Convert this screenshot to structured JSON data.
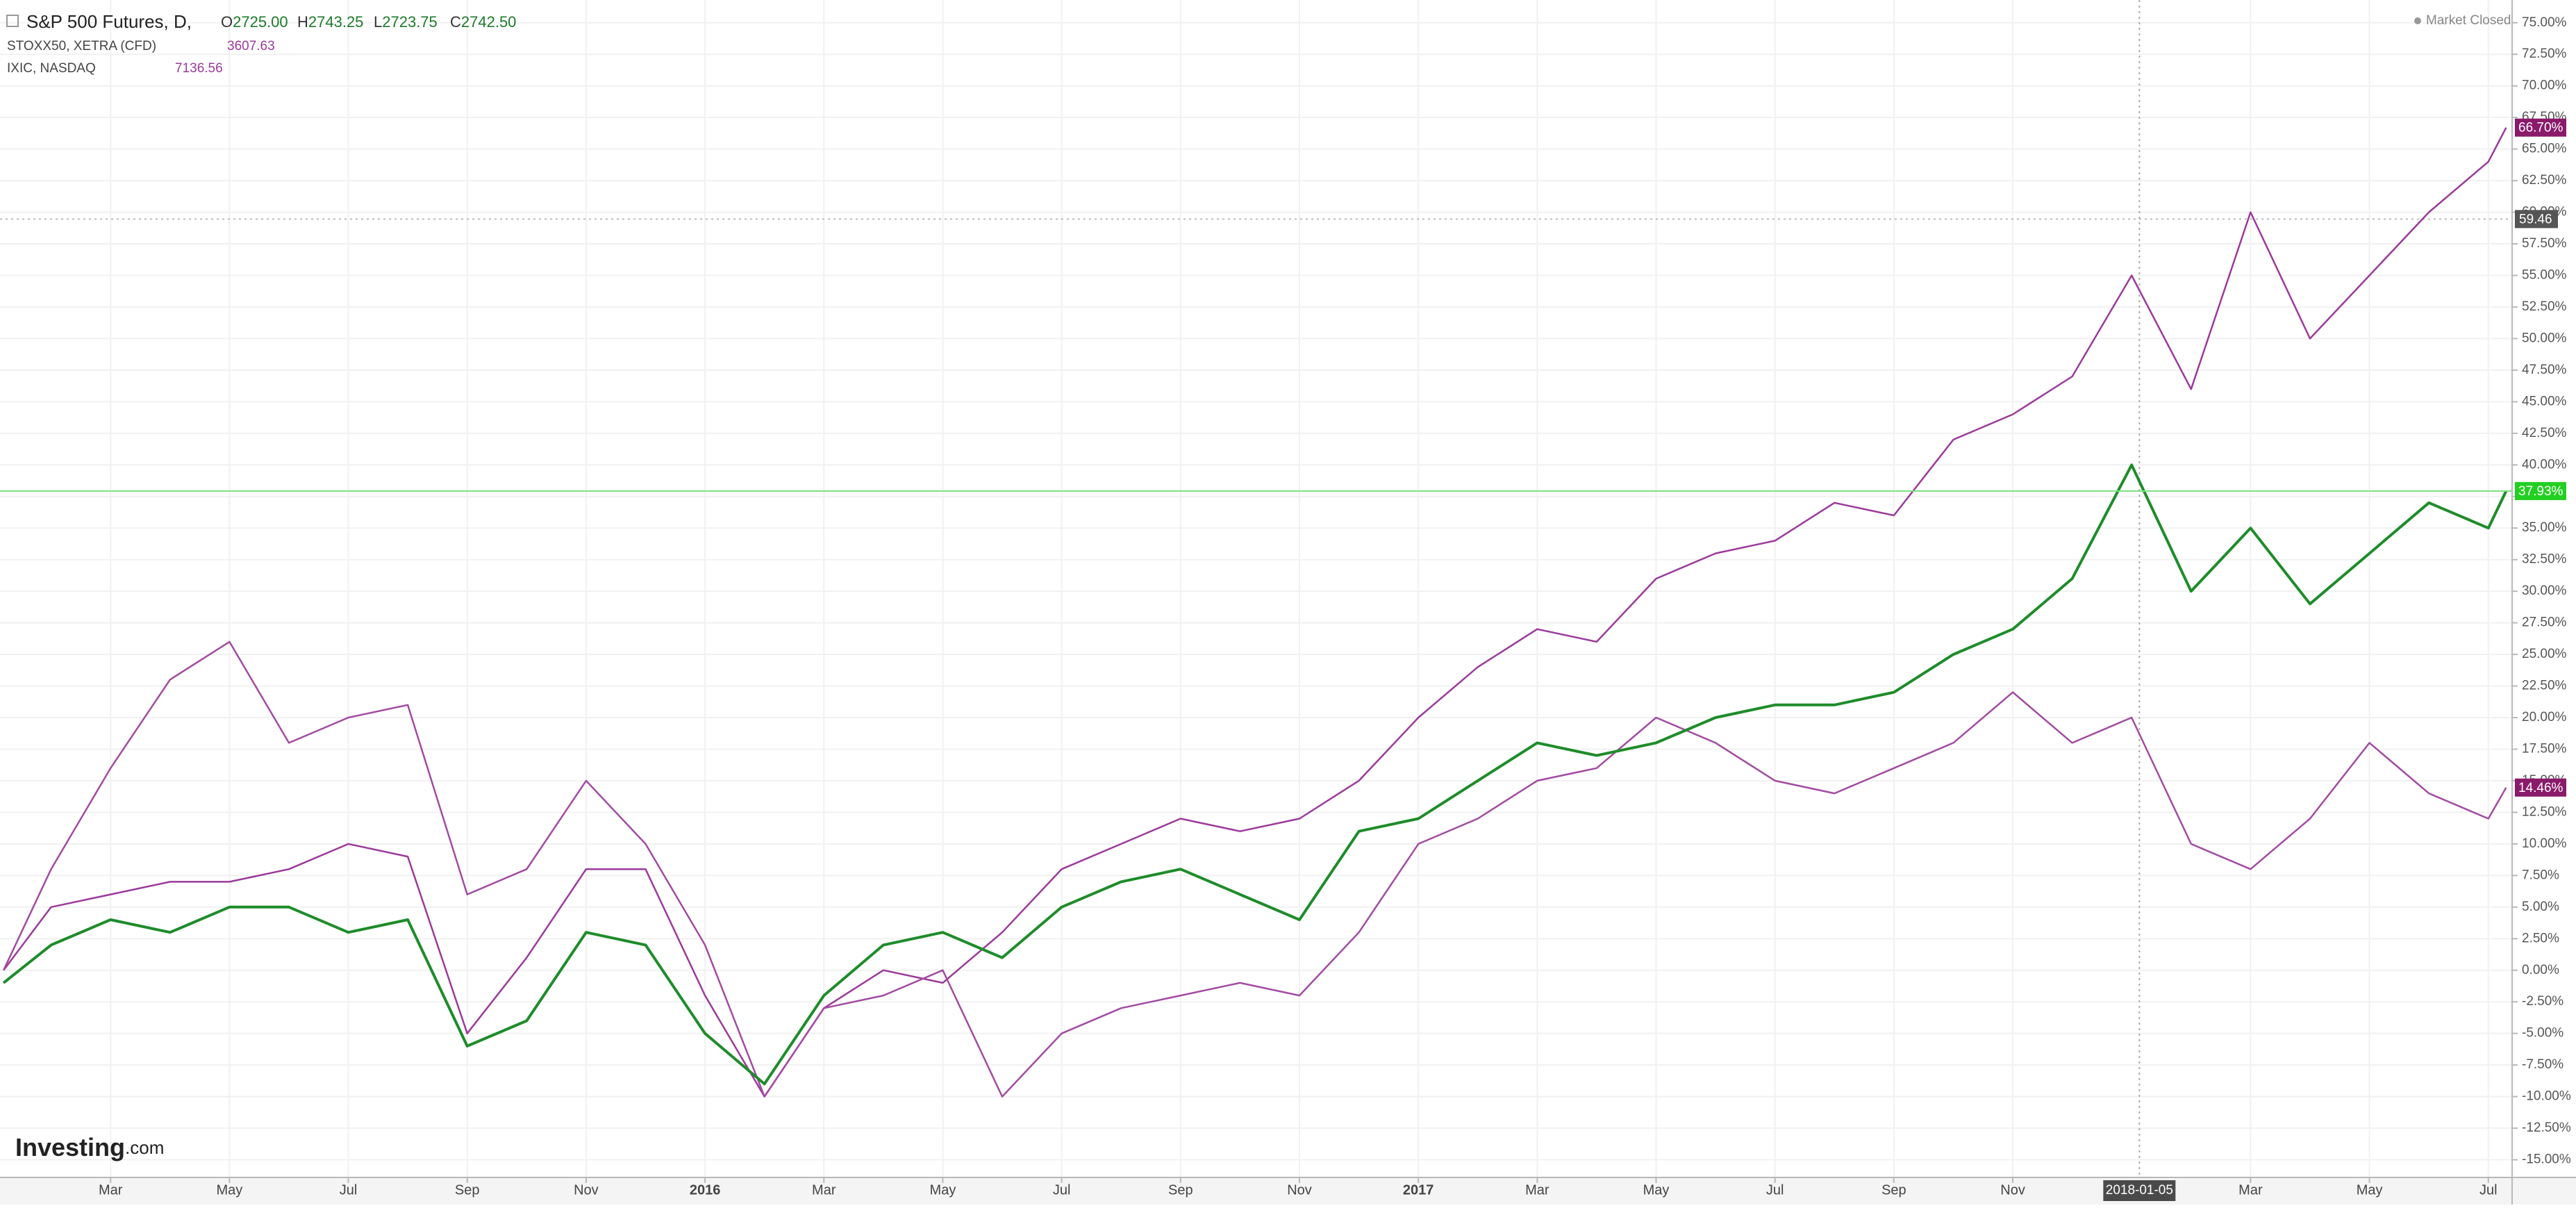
{
  "header": {
    "main": {
      "name": "S&P 500 Futures, D,",
      "ohlc": [
        [
          "O",
          "2725.00"
        ],
        [
          "H",
          "2743.25"
        ],
        [
          "L",
          "2723.75"
        ],
        [
          "C",
          "2742.50"
        ]
      ]
    },
    "compare": [
      {
        "name": "STOXX50, XETRA (CFD)",
        "price": "3607.63"
      },
      {
        "name": "IXIC, NASDAQ",
        "price": "7136.56"
      }
    ],
    "status": "Market Closed",
    "logo": [
      "Investing",
      ".com"
    ]
  },
  "chart_data": {
    "type": "line",
    "x": [
      0.2,
      1,
      2,
      3,
      4,
      5,
      6,
      7,
      8,
      9,
      10,
      11,
      12,
      13,
      14,
      15,
      16,
      17,
      18,
      19,
      20,
      21,
      22,
      23,
      24,
      25,
      26,
      27,
      28,
      29,
      30,
      31,
      32,
      33,
      34,
      35,
      36,
      37,
      38,
      39,
      40,
      41,
      42,
      42.3
    ],
    "series": [
      {
        "name": "IXIC, NASDAQ",
        "color": "#9b3a9b",
        "last_label": "66.70%",
        "values": [
          0,
          5,
          6,
          7,
          7,
          8,
          10,
          9,
          -5,
          1,
          8,
          8,
          -2,
          -10,
          -3,
          0,
          -1,
          3,
          8,
          10,
          12,
          11,
          12,
          15,
          20,
          24,
          27,
          26,
          31,
          33,
          34,
          37,
          36,
          42,
          44,
          47,
          55,
          46,
          60,
          50,
          55,
          60,
          64,
          66.7
        ]
      },
      {
        "name": "STOXX50, XETRA (CFD)",
        "color": "#a24ba2",
        "last_label": "14.46%",
        "values": [
          0,
          8,
          16,
          23,
          26,
          18,
          20,
          21,
          6,
          8,
          15,
          10,
          2,
          -10,
          -3,
          -2,
          0,
          -10,
          -5,
          -3,
          -2,
          -1,
          -2,
          3,
          10,
          12,
          15,
          16,
          20,
          18,
          15,
          14,
          16,
          18,
          22,
          18,
          20,
          10,
          8,
          12,
          18,
          14,
          12,
          14.46
        ]
      },
      {
        "name": "S&P 500 Futures, D,",
        "color": "#1e8c2a",
        "last_label": "37.93%",
        "values": [
          -1,
          2,
          4,
          3,
          5,
          5,
          3,
          4,
          -6,
          -4,
          3,
          2,
          -5,
          -9,
          -2,
          2,
          3,
          1,
          5,
          7,
          8,
          6,
          4,
          11,
          12,
          15,
          18,
          17,
          18,
          20,
          21,
          21,
          22,
          25,
          27,
          31,
          40,
          30,
          35,
          29,
          33,
          37,
          35,
          37.93
        ]
      }
    ],
    "xlim": [
      0.14,
      42.4
    ],
    "xticks": [
      {
        "value": 2,
        "label": "Mar"
      },
      {
        "value": 4,
        "label": "May"
      },
      {
        "value": 6,
        "label": "Jul"
      },
      {
        "value": 8,
        "label": "Sep"
      },
      {
        "value": 10,
        "label": "Nov"
      },
      {
        "value": 12,
        "label": "2016"
      },
      {
        "value": 14,
        "label": "Mar"
      },
      {
        "value": 16,
        "label": "May"
      },
      {
        "value": 18,
        "label": "Jul"
      },
      {
        "value": 20,
        "label": "Sep"
      },
      {
        "value": 22,
        "label": "Nov"
      },
      {
        "value": 24,
        "label": "2017"
      },
      {
        "value": 26,
        "label": "Mar"
      },
      {
        "value": 28,
        "label": "May"
      },
      {
        "value": 30,
        "label": "Jul"
      },
      {
        "value": 32,
        "label": "Sep"
      },
      {
        "value": 34,
        "label": "Nov"
      },
      {
        "value": 38,
        "label": "Mar"
      },
      {
        "value": 40,
        "label": "May"
      },
      {
        "value": 42,
        "label": "Jul"
      }
    ],
    "ylim": [
      -16.4,
      76.8
    ],
    "yticks": [
      {
        "value": 75,
        "label": "75.00%"
      },
      {
        "value": 72.5,
        "label": "72.50%"
      },
      {
        "value": 70,
        "label": "70.00%"
      },
      {
        "value": 67.5,
        "label": "67.50%"
      },
      {
        "value": 65,
        "label": "65.00%"
      },
      {
        "value": 62.5,
        "label": "62.50%"
      },
      {
        "value": 60,
        "label": "60.00%"
      },
      {
        "value": 57.5,
        "label": "57.50%"
      },
      {
        "value": 55,
        "label": "55.00%"
      },
      {
        "value": 52.5,
        "label": "52.50%"
      },
      {
        "value": 50,
        "label": "50.00%"
      },
      {
        "value": 47.5,
        "label": "47.50%"
      },
      {
        "value": 45,
        "label": "45.00%"
      },
      {
        "value": 42.5,
        "label": "42.50%"
      },
      {
        "value": 40,
        "label": "40.00%"
      },
      {
        "value": 37.5,
        "label": "37.50%"
      },
      {
        "value": 35,
        "label": "35.00%"
      },
      {
        "value": 32.5,
        "label": "32.50%"
      },
      {
        "value": 30,
        "label": "30.00%"
      },
      {
        "value": 27.5,
        "label": "27.50%"
      },
      {
        "value": 25,
        "label": "25.00%"
      },
      {
        "value": 22.5,
        "label": "22.50%"
      },
      {
        "value": 20,
        "label": "20.00%"
      },
      {
        "value": 17.5,
        "label": "17.50%"
      },
      {
        "value": 15,
        "label": "15.00%"
      },
      {
        "value": 12.5,
        "label": "12.50%"
      },
      {
        "value": 10,
        "label": "10.00%"
      },
      {
        "value": 7.5,
        "label": "7.50%"
      },
      {
        "value": 5,
        "label": "5.00%"
      },
      {
        "value": 2.5,
        "label": "2.50%"
      },
      {
        "value": 0,
        "label": "0.00%"
      },
      {
        "value": -2.5,
        "label": "-2.50%"
      },
      {
        "value": -5,
        "label": "-5.00%"
      },
      {
        "value": -7.5,
        "label": "-7.50%"
      },
      {
        "value": -10,
        "label": "-10.00%"
      },
      {
        "value": -12.5,
        "label": "-12.50%"
      },
      {
        "value": -15,
        "label": "-15.00%"
      }
    ],
    "grid": true,
    "reference_line": 59.46,
    "cursor": {
      "x": 36.13,
      "label": "2018-01-05"
    }
  }
}
